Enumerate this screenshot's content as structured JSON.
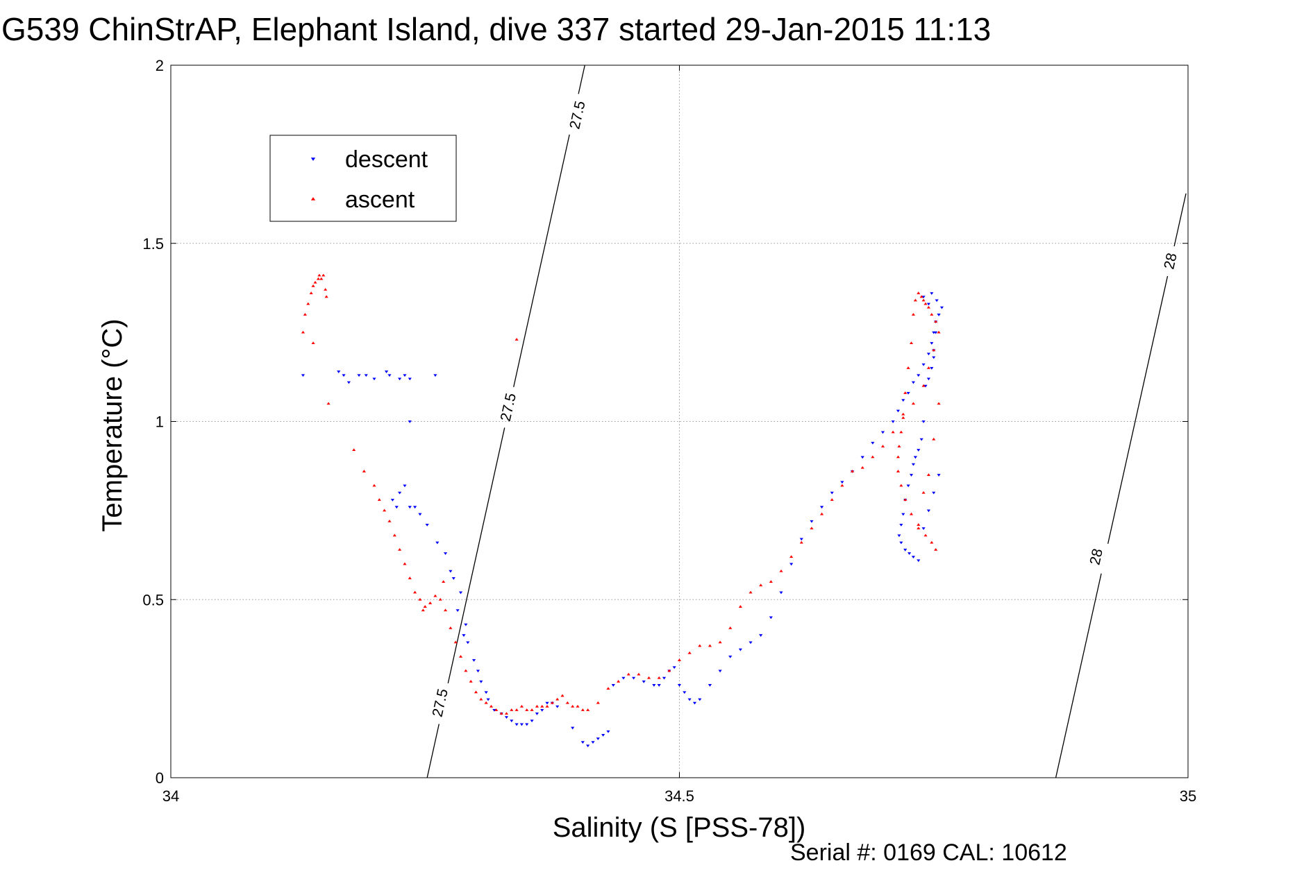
{
  "chart_data": {
    "type": "scatter",
    "title": "G539 ChinStrAP, Elephant Island, dive 337 started 29-Jan-2015 11:13",
    "xlabel": "Salinity (S [PSS-78])",
    "ylabel": "Temperature (°C)",
    "footer": "Serial #: 0169 CAL: 10612",
    "xlim": [
      34,
      35
    ],
    "ylim": [
      0,
      2
    ],
    "xticks": [
      34,
      34.5,
      35
    ],
    "yticks": [
      0,
      0.5,
      1,
      1.5,
      2
    ],
    "xtick_labels": [
      "34",
      "34.5",
      "35"
    ],
    "ytick_labels": [
      "0",
      "0.5",
      "1",
      "1.5",
      "2"
    ],
    "grid": true,
    "legend_position": "top-left",
    "colors": {
      "descent": "#0000ff",
      "ascent": "#ff0000",
      "contour": "#000000"
    },
    "contours": [
      {
        "level": "27.5",
        "points": [
          [
            34.252,
            0.0
          ],
          [
            34.407,
            2.0
          ]
        ],
        "labels": [
          {
            "text": "27.5",
            "x": 34.265,
            "y": 0.21
          },
          {
            "text": "27.5",
            "x": 34.332,
            "y": 1.04
          },
          {
            "text": "27.5",
            "x": 34.4,
            "y": 1.86
          }
        ]
      },
      {
        "level": "28",
        "points": [
          [
            34.87,
            0.0
          ],
          [
            34.998,
            1.64
          ]
        ],
        "labels": [
          {
            "text": "28",
            "x": 34.91,
            "y": 0.62
          },
          {
            "text": "28",
            "x": 34.983,
            "y": 1.45
          }
        ]
      }
    ],
    "series": [
      {
        "name": "descent",
        "marker": "triangle-down",
        "x": [
          34.13,
          34.165,
          34.17,
          34.175,
          34.185,
          34.192,
          34.2,
          34.215,
          34.225,
          34.23,
          34.235,
          34.225,
          34.23,
          34.218,
          34.222,
          34.235,
          34.24,
          34.245,
          34.252,
          34.262,
          34.27,
          34.275,
          34.278,
          34.285,
          34.282,
          34.29,
          34.288,
          34.292,
          34.298,
          34.302,
          34.305,
          34.31,
          34.312,
          34.318,
          34.325,
          34.33,
          34.335,
          34.34,
          34.345,
          34.35,
          34.355,
          34.36,
          34.365,
          34.37,
          34.375,
          34.38,
          34.395,
          34.405,
          34.41,
          34.415,
          34.42,
          34.425,
          34.43,
          34.435,
          34.445,
          34.455,
          34.465,
          34.475,
          34.48,
          34.485,
          34.49,
          34.495,
          34.5,
          34.505,
          34.51,
          34.515,
          34.52,
          34.53,
          34.54,
          34.55,
          34.56,
          34.57,
          34.58,
          34.59,
          34.6,
          34.61,
          34.62,
          34.63,
          34.64,
          34.65,
          34.66,
          34.67,
          34.68,
          34.69,
          34.7,
          34.71,
          34.715,
          34.72,
          34.725,
          34.73,
          34.735,
          34.74,
          34.745,
          34.748,
          34.75,
          34.752,
          34.755,
          34.758,
          34.745,
          34.74,
          34.748,
          34.753,
          34.755,
          34.752,
          34.75,
          34.748,
          34.745,
          34.742,
          34.74,
          34.738,
          34.735,
          34.732,
          34.73,
          34.728,
          34.725,
          34.722,
          34.72,
          34.718,
          34.716,
          34.718,
          34.722,
          34.726,
          34.73,
          34.735,
          34.74,
          34.745,
          34.75,
          34.755,
          34.26,
          34.75,
          34.235,
          34.212
        ],
        "y": [
          1.13,
          1.14,
          1.13,
          1.11,
          1.13,
          1.13,
          1.12,
          1.13,
          1.12,
          1.13,
          1.12,
          0.8,
          0.82,
          0.78,
          0.76,
          0.76,
          0.76,
          0.74,
          0.71,
          0.66,
          0.63,
          0.58,
          0.56,
          0.52,
          0.47,
          0.43,
          0.4,
          0.38,
          0.33,
          0.3,
          0.27,
          0.24,
          0.22,
          0.19,
          0.18,
          0.17,
          0.16,
          0.15,
          0.15,
          0.15,
          0.16,
          0.18,
          0.19,
          0.21,
          0.21,
          0.2,
          0.14,
          0.1,
          0.09,
          0.1,
          0.11,
          0.12,
          0.13,
          0.26,
          0.28,
          0.28,
          0.27,
          0.26,
          0.26,
          0.28,
          0.3,
          0.31,
          0.26,
          0.24,
          0.22,
          0.21,
          0.22,
          0.26,
          0.3,
          0.34,
          0.36,
          0.38,
          0.4,
          0.45,
          0.52,
          0.6,
          0.67,
          0.72,
          0.76,
          0.8,
          0.83,
          0.86,
          0.9,
          0.94,
          0.97,
          1.0,
          1.03,
          1.06,
          1.08,
          1.11,
          1.13,
          1.16,
          1.19,
          1.22,
          1.25,
          1.28,
          1.3,
          1.32,
          1.33,
          1.35,
          1.36,
          1.34,
          1.3,
          1.25,
          1.2,
          1.15,
          1.12,
          1.1,
          1.0,
          0.95,
          0.92,
          0.9,
          0.88,
          0.85,
          0.82,
          0.78,
          0.74,
          0.71,
          0.68,
          0.66,
          0.64,
          0.63,
          0.62,
          0.61,
          0.7,
          0.75,
          0.8,
          0.85,
          1.13,
          1.18,
          1.0,
          1.14
        ],
        "color": "#0000ff"
      },
      {
        "name": "ascent",
        "marker": "triangle-up",
        "x": [
          34.13,
          34.132,
          34.135,
          34.138,
          34.14,
          34.142,
          34.145,
          34.146,
          34.148,
          34.15,
          34.152,
          34.153,
          34.14,
          34.155,
          34.18,
          34.19,
          34.2,
          34.205,
          34.21,
          34.215,
          34.22,
          34.225,
          34.23,
          34.235,
          34.24,
          34.245,
          34.25,
          34.255,
          34.26,
          34.265,
          34.27,
          34.275,
          34.28,
          34.285,
          34.29,
          34.295,
          34.3,
          34.305,
          34.31,
          34.315,
          34.32,
          34.325,
          34.33,
          34.335,
          34.34,
          34.345,
          34.35,
          34.355,
          34.36,
          34.365,
          34.37,
          34.375,
          34.38,
          34.385,
          34.39,
          34.395,
          34.4,
          34.405,
          34.41,
          34.42,
          34.43,
          34.44,
          34.45,
          34.46,
          34.47,
          34.48,
          34.49,
          34.5,
          34.51,
          34.52,
          34.53,
          34.54,
          34.55,
          34.56,
          34.57,
          34.58,
          34.59,
          34.6,
          34.61,
          34.62,
          34.63,
          34.64,
          34.65,
          34.66,
          34.67,
          34.68,
          34.69,
          34.7,
          34.71,
          34.72,
          34.73,
          34.74,
          34.745,
          34.75,
          34.755,
          34.752,
          34.748,
          34.745,
          34.742,
          34.74,
          34.738,
          34.735,
          34.732,
          34.73,
          34.728,
          34.725,
          34.722,
          34.72,
          34.718,
          34.716,
          34.715,
          34.715,
          34.718,
          34.722,
          34.728,
          34.735,
          34.742,
          34.748,
          34.752,
          34.735,
          34.745,
          34.75,
          34.755,
          34.74,
          34.248,
          34.268,
          34.34
        ],
        "y": [
          1.25,
          1.3,
          1.33,
          1.36,
          1.38,
          1.39,
          1.4,
          1.41,
          1.4,
          1.41,
          1.37,
          1.35,
          1.22,
          1.05,
          0.92,
          0.86,
          0.82,
          0.78,
          0.75,
          0.72,
          0.68,
          0.64,
          0.6,
          0.56,
          0.52,
          0.5,
          0.48,
          0.49,
          0.51,
          0.5,
          0.47,
          0.42,
          0.38,
          0.34,
          0.3,
          0.27,
          0.24,
          0.22,
          0.21,
          0.2,
          0.19,
          0.18,
          0.18,
          0.19,
          0.19,
          0.2,
          0.19,
          0.19,
          0.2,
          0.2,
          0.2,
          0.21,
          0.22,
          0.23,
          0.21,
          0.2,
          0.2,
          0.19,
          0.19,
          0.21,
          0.25,
          0.27,
          0.29,
          0.29,
          0.28,
          0.28,
          0.3,
          0.33,
          0.35,
          0.37,
          0.37,
          0.38,
          0.42,
          0.48,
          0.52,
          0.54,
          0.55,
          0.58,
          0.62,
          0.66,
          0.7,
          0.74,
          0.78,
          0.82,
          0.86,
          0.87,
          0.9,
          0.93,
          0.97,
          1.01,
          1.05,
          1.1,
          1.15,
          1.2,
          1.25,
          1.28,
          1.3,
          1.32,
          1.33,
          1.34,
          1.35,
          1.36,
          1.34,
          1.3,
          1.22,
          1.15,
          1.08,
          1.02,
          0.97,
          0.93,
          0.9,
          0.86,
          0.82,
          0.78,
          0.74,
          0.71,
          0.68,
          0.66,
          0.64,
          0.7,
          0.85,
          0.95,
          1.05,
          0.8,
          0.47,
          0.55,
          1.23
        ],
        "color": "#ff0000"
      }
    ]
  }
}
